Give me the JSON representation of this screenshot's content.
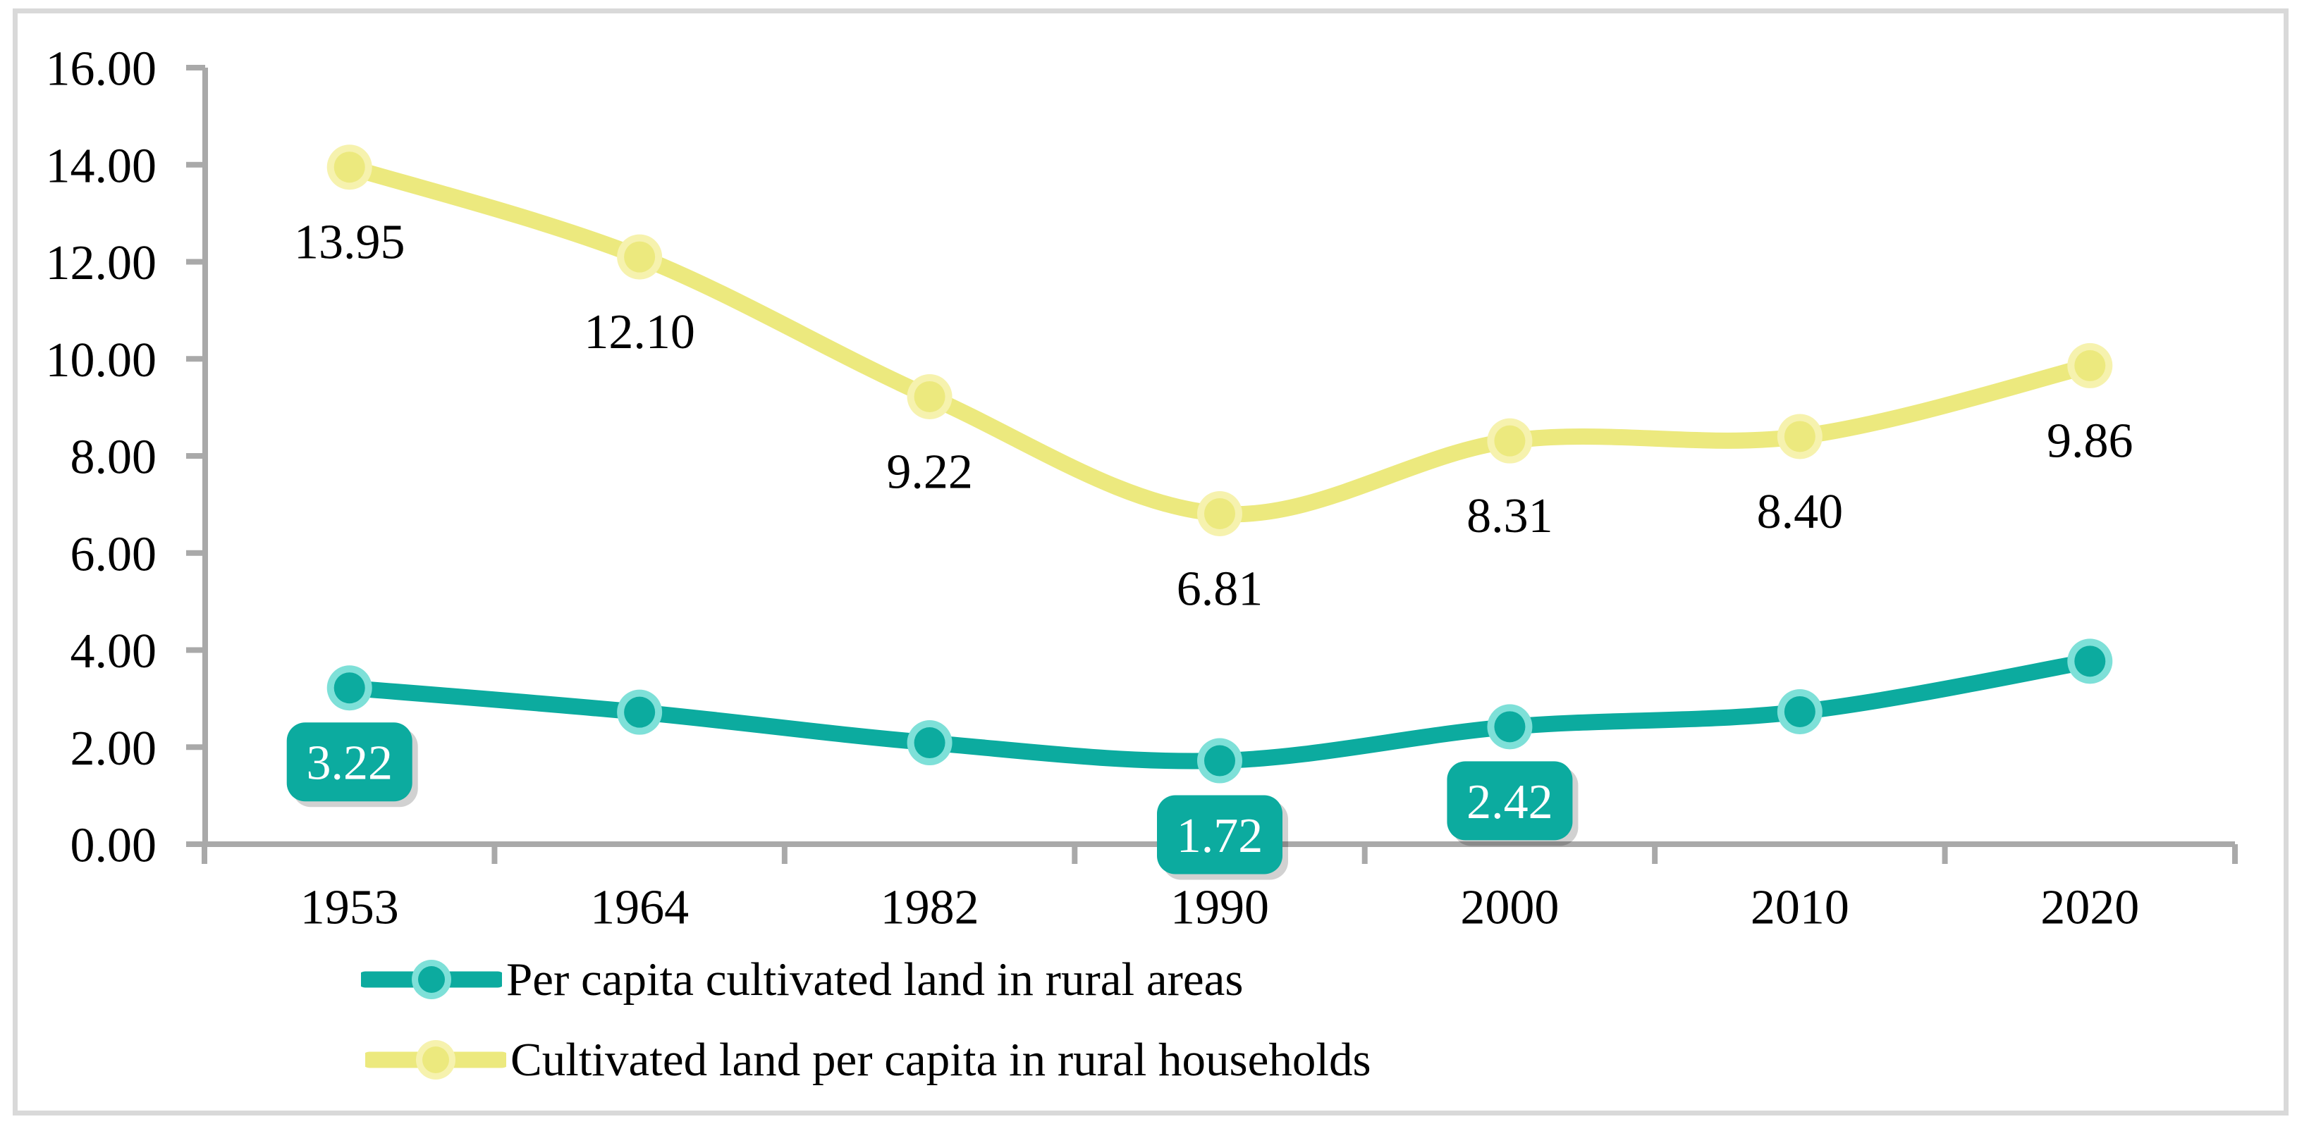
{
  "figure": {
    "background": "#ffffff",
    "border_color": "#d9d9d9",
    "axis_color": "#a9a9a9",
    "text_color": "#000000"
  },
  "chart_data": {
    "type": "line",
    "smoothed_lines": true,
    "grid": "off",
    "categories": [
      "1953",
      "1964",
      "1982",
      "1990",
      "2000",
      "2010",
      "2020"
    ],
    "y_axis": {
      "min": 0,
      "max": 16,
      "step": 2,
      "tick_labels": [
        "0.00",
        "2.00",
        "4.00",
        "6.00",
        "8.00",
        "10.00",
        "12.00",
        "14.00",
        "16.00"
      ]
    },
    "series": [
      {
        "name": "Per capita cultivated land in rural areas",
        "color": "#0cab9f",
        "marker_halo": "#7ee0d8",
        "label_style": "boxed",
        "label_text_color": "#ffffff",
        "values": [
          3.22,
          2.72,
          2.09,
          1.72,
          2.42,
          2.73,
          3.77
        ],
        "data_labels": [
          {
            "index": 0,
            "text": "3.22"
          },
          {
            "index": 3,
            "text": "1.72"
          },
          {
            "index": 4,
            "text": "2.42"
          }
        ]
      },
      {
        "name": "Cultivated land per capita in rural households",
        "color": "#ece97e",
        "marker_halo": "#f6f2ae",
        "label_style": "plain",
        "label_text_color": "#000000",
        "values": [
          13.95,
          12.1,
          9.22,
          6.81,
          8.31,
          8.4,
          9.86
        ],
        "data_labels": [
          {
            "index": 0,
            "text": "13.95"
          },
          {
            "index": 1,
            "text": "12.10"
          },
          {
            "index": 2,
            "text": "9.22"
          },
          {
            "index": 3,
            "text": "6.81"
          },
          {
            "index": 4,
            "text": "8.31"
          },
          {
            "index": 5,
            "text": "8.40"
          },
          {
            "index": 6,
            "text": "9.86"
          }
        ]
      }
    ],
    "legend": {
      "position": "bottom-left",
      "entries": [
        {
          "label": "Per capita cultivated land in rural areas",
          "series": 0
        },
        {
          "label": "Cultivated land per capita in rural households",
          "series": 1
        }
      ]
    }
  }
}
